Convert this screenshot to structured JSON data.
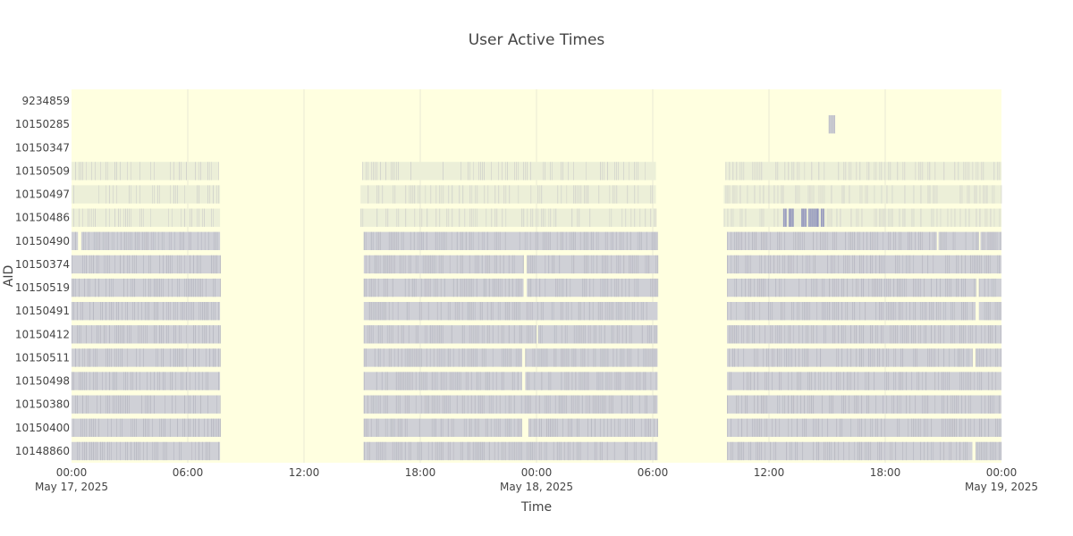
{
  "chart_data": {
    "type": "heatmap",
    "title": "User Active Times",
    "xlabel": "Time",
    "ylabel": "AID",
    "x_range": [
      "2025-05-17 00:00",
      "2025-05-19 00:00"
    ],
    "x_ticks": [
      {
        "time": "2025-05-17 00:00",
        "label": "00:00",
        "date_label": "May 17, 2025"
      },
      {
        "time": "2025-05-17 06:00",
        "label": "06:00",
        "date_label": ""
      },
      {
        "time": "2025-05-17 12:00",
        "label": "12:00",
        "date_label": ""
      },
      {
        "time": "2025-05-17 18:00",
        "label": "18:00",
        "date_label": ""
      },
      {
        "time": "2025-05-18 00:00",
        "label": "00:00",
        "date_label": "May 18, 2025"
      },
      {
        "time": "2025-05-18 06:00",
        "label": "06:00",
        "date_label": ""
      },
      {
        "time": "2025-05-18 12:00",
        "label": "12:00",
        "date_label": ""
      },
      {
        "time": "2025-05-18 18:00",
        "label": "18:00",
        "date_label": ""
      },
      {
        "time": "2025-05-19 00:00",
        "label": "00:00",
        "date_label": "May 19, 2025"
      }
    ],
    "colors": {
      "background": "#ffffe0",
      "low_activity": "#ecefd8",
      "mid_activity": "#cfd0d6",
      "high_activity": "#7f83b8",
      "gridline": "#f0f0d8"
    },
    "rows": [
      {
        "aid": "9234859",
        "level": "none",
        "active_periods": []
      },
      {
        "aid": "10150285",
        "level": "sparse",
        "active_periods": [
          [
            "2025-05-18 15:05",
            "2025-05-18 15:25"
          ]
        ]
      },
      {
        "aid": "10150347",
        "level": "sparse",
        "active_periods": []
      },
      {
        "aid": "10150509",
        "level": "low",
        "active_periods": [
          [
            "2025-05-17 00:00",
            "2025-05-17 07:35"
          ],
          [
            "2025-05-17 15:00",
            "2025-05-18 06:10"
          ],
          [
            "2025-05-18 09:45",
            "2025-05-19 00:00"
          ]
        ]
      },
      {
        "aid": "10150497",
        "level": "low",
        "active_periods": [
          [
            "2025-05-17 00:00",
            "2025-05-17 07:40"
          ],
          [
            "2025-05-17 14:55",
            "2025-05-18 06:10"
          ],
          [
            "2025-05-18 09:40",
            "2025-05-19 00:00"
          ]
        ]
      },
      {
        "aid": "10150486",
        "level": "low",
        "active_periods": [
          [
            "2025-05-17 00:00",
            "2025-05-17 07:40"
          ],
          [
            "2025-05-17 14:55",
            "2025-05-18 06:10"
          ],
          [
            "2025-05-18 09:40",
            "2025-05-19 00:00"
          ]
        ],
        "peak_periods": [
          [
            "2025-05-18 12:45",
            "2025-05-18 13:15"
          ],
          [
            "2025-05-18 13:35",
            "2025-05-18 14:25"
          ],
          [
            "2025-05-18 14:30",
            "2025-05-18 15:10"
          ]
        ]
      },
      {
        "aid": "10150490",
        "level": "mid",
        "active_periods": [
          [
            "2025-05-17 00:00",
            "2025-05-17 00:20"
          ],
          [
            "2025-05-17 00:30",
            "2025-05-17 07:40"
          ],
          [
            "2025-05-17 15:05",
            "2025-05-18 06:15"
          ],
          [
            "2025-05-18 09:50",
            "2025-05-18 20:40"
          ],
          [
            "2025-05-18 20:45",
            "2025-05-18 22:50"
          ],
          [
            "2025-05-18 22:55",
            "2025-05-19 00:00"
          ]
        ]
      },
      {
        "aid": "10150374",
        "level": "mid",
        "active_periods": [
          [
            "2025-05-17 00:00",
            "2025-05-17 07:40"
          ],
          [
            "2025-05-17 15:05",
            "2025-05-17 23:20"
          ],
          [
            "2025-05-17 23:30",
            "2025-05-18 06:15"
          ],
          [
            "2025-05-18 09:50",
            "2025-05-19 00:00"
          ]
        ]
      },
      {
        "aid": "10150519",
        "level": "mid",
        "active_periods": [
          [
            "2025-05-17 00:00",
            "2025-05-17 07:40"
          ],
          [
            "2025-05-17 15:05",
            "2025-05-17 23:20"
          ],
          [
            "2025-05-17 23:30",
            "2025-05-18 06:15"
          ],
          [
            "2025-05-18 09:50",
            "2025-05-18 22:40"
          ],
          [
            "2025-05-18 22:50",
            "2025-05-19 00:00"
          ]
        ]
      },
      {
        "aid": "10150491",
        "level": "mid",
        "active_periods": [
          [
            "2025-05-17 00:00",
            "2025-05-17 07:40"
          ],
          [
            "2025-05-17 15:05",
            "2025-05-18 06:15"
          ],
          [
            "2025-05-18 09:50",
            "2025-05-18 22:40"
          ],
          [
            "2025-05-18 22:50",
            "2025-05-19 00:00"
          ]
        ]
      },
      {
        "aid": "10150412",
        "level": "mid",
        "active_periods": [
          [
            "2025-05-17 00:00",
            "2025-05-17 07:40"
          ],
          [
            "2025-05-17 15:05",
            "2025-05-18 00:00"
          ],
          [
            "2025-05-18 00:05",
            "2025-05-18 06:15"
          ],
          [
            "2025-05-18 09:50",
            "2025-05-19 00:00"
          ]
        ]
      },
      {
        "aid": "10150511",
        "level": "mid",
        "active_periods": [
          [
            "2025-05-17 00:00",
            "2025-05-17 07:40"
          ],
          [
            "2025-05-17 15:05",
            "2025-05-17 23:15"
          ],
          [
            "2025-05-17 23:25",
            "2025-05-18 06:15"
          ],
          [
            "2025-05-18 09:50",
            "2025-05-18 22:30"
          ],
          [
            "2025-05-18 22:40",
            "2025-05-19 00:00"
          ]
        ]
      },
      {
        "aid": "10150498",
        "level": "mid",
        "active_periods": [
          [
            "2025-05-17 00:00",
            "2025-05-17 07:40"
          ],
          [
            "2025-05-17 15:05",
            "2025-05-17 23:15"
          ],
          [
            "2025-05-17 23:25",
            "2025-05-18 06:15"
          ],
          [
            "2025-05-18 09:50",
            "2025-05-19 00:00"
          ]
        ]
      },
      {
        "aid": "10150380",
        "level": "mid",
        "active_periods": [
          [
            "2025-05-17 00:00",
            "2025-05-17 07:40"
          ],
          [
            "2025-05-17 15:05",
            "2025-05-18 06:15"
          ],
          [
            "2025-05-18 09:50",
            "2025-05-19 00:00"
          ]
        ]
      },
      {
        "aid": "10150400",
        "level": "mid",
        "active_periods": [
          [
            "2025-05-17 00:00",
            "2025-05-17 07:40"
          ],
          [
            "2025-05-17 15:05",
            "2025-05-17 23:15"
          ],
          [
            "2025-05-17 23:35",
            "2025-05-18 06:15"
          ],
          [
            "2025-05-18 09:50",
            "2025-05-19 00:00"
          ]
        ]
      },
      {
        "aid": "10148860",
        "level": "mid",
        "active_periods": [
          [
            "2025-05-17 00:00",
            "2025-05-17 07:40"
          ],
          [
            "2025-05-17 15:05",
            "2025-05-18 06:15"
          ],
          [
            "2025-05-18 09:50",
            "2025-05-18 22:30"
          ],
          [
            "2025-05-18 22:40",
            "2025-05-19 00:00"
          ]
        ]
      }
    ]
  }
}
